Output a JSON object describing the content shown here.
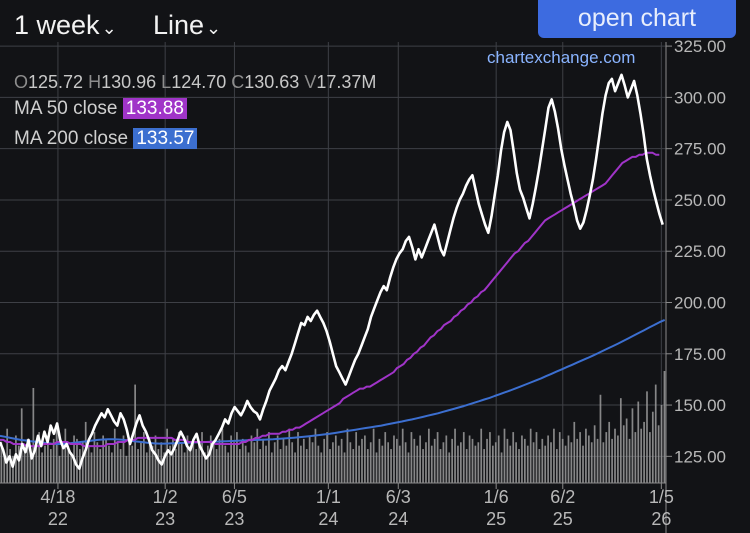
{
  "toolbar": {
    "range_label": "1 week",
    "type_label": "Line",
    "open_chart_label": "open chart",
    "brand": "chartexchange.com"
  },
  "ohlcv": {
    "o_label": "O",
    "o": "125.72",
    "h_label": "H",
    "h": "130.96",
    "l_label": "L",
    "l": "124.70",
    "c_label": "C",
    "c": "130.63",
    "v_label": "V",
    "v": "17.37M"
  },
  "indicators": {
    "ma50": {
      "label": "MA 50 close",
      "value": "133.88",
      "color": "#a034c8"
    },
    "ma200": {
      "label": "MA 200 close",
      "value": "133.57",
      "color": "#3c6fd0"
    }
  },
  "colors": {
    "background": "#121316",
    "grid": "#3e4046",
    "price": "#ffffff",
    "volume": "#9b9b9b",
    "axis_text": "#b8b8b8"
  },
  "chart_data": {
    "type": "line",
    "title": "",
    "xlabel": "",
    "ylabel": "",
    "ylim": [
      112,
      327
    ],
    "y_ticks": [
      "325.00",
      "300.00",
      "275.00",
      "250.00",
      "225.00",
      "200.00",
      "175.00",
      "150.00",
      "125.00"
    ],
    "y_tick_values": [
      325,
      300,
      275,
      250,
      225,
      200,
      175,
      150,
      125
    ],
    "x_ticks": [
      {
        "label": "4/18",
        "year": "22",
        "t": 0.087
      },
      {
        "label": "1/2",
        "year": "23",
        "t": 0.248
      },
      {
        "label": "6/5",
        "year": "23",
        "t": 0.352
      },
      {
        "label": "1/1",
        "year": "24",
        "t": 0.493
      },
      {
        "label": "6/3",
        "year": "24",
        "t": 0.598
      },
      {
        "label": "1/6",
        "year": "25",
        "t": 0.745
      },
      {
        "label": "6/2",
        "year": "25",
        "t": 0.845
      },
      {
        "label": "1/5",
        "year": "26",
        "t": 0.993
      }
    ],
    "series": [
      {
        "key": "price",
        "values": [
          132,
          128,
          122,
          125,
          120,
          126,
          123,
          131,
          127,
          133,
          124,
          128,
          135,
          130,
          137,
          132,
          140,
          136,
          141,
          133,
          129,
          131,
          127,
          125,
          121,
          119,
          124,
          128,
          133,
          136,
          140,
          143,
          146,
          144,
          148,
          145,
          142,
          140,
          146,
          143,
          138,
          131,
          136,
          141,
          145,
          140,
          137,
          133,
          128,
          126,
          123,
          121,
          125,
          128,
          126,
          129,
          133,
          137,
          134,
          130,
          128,
          133,
          136,
          130,
          127,
          124,
          126,
          131,
          133,
          136,
          139,
          143,
          141,
          146,
          149,
          147,
          145,
          148,
          152,
          149,
          147,
          146,
          143,
          148,
          152,
          157,
          160,
          163,
          167,
          169,
          167,
          171,
          175,
          180,
          185,
          190,
          189,
          193,
          191,
          194,
          196,
          193,
          190,
          186,
          181,
          175,
          169,
          166,
          163,
          160,
          164,
          168,
          172,
          175,
          179,
          183,
          187,
          193,
          197,
          201,
          205,
          208,
          206,
          212,
          217,
          221,
          224,
          226,
          230,
          232,
          227,
          221,
          226,
          222,
          226,
          230,
          234,
          238,
          232,
          226,
          223,
          229,
          235,
          241,
          246,
          250,
          253,
          257,
          260,
          262,
          255,
          248,
          243,
          238,
          234,
          242,
          252,
          262,
          274,
          283,
          288,
          284,
          274,
          263,
          255,
          251,
          246,
          241,
          248,
          256,
          265,
          275,
          285,
          295,
          299,
          293,
          285,
          275,
          267,
          260,
          253,
          247,
          240,
          236,
          239,
          245,
          252,
          260,
          270,
          281,
          292,
          301,
          307,
          309,
          303,
          307,
          311,
          306,
          300,
          304,
          308,
          301,
          292,
          282,
          270,
          262,
          255,
          249,
          243,
          238
        ]
      },
      {
        "key": "ma50",
        "values": [
          133,
          133,
          132,
          132,
          131,
          131,
          131,
          131,
          130,
          130,
          130,
          130,
          130,
          131,
          131,
          131,
          131,
          132,
          132,
          132,
          132,
          131,
          131,
          131,
          131,
          130,
          130,
          130,
          130,
          130,
          130,
          130,
          131,
          131,
          131,
          132,
          132,
          132,
          133,
          133,
          133,
          134,
          134,
          134,
          134,
          134,
          134,
          134,
          134,
          134,
          134,
          134,
          133,
          133,
          133,
          133,
          132,
          132,
          132,
          132,
          132,
          132,
          132,
          132,
          131,
          131,
          131,
          131,
          131,
          131,
          131,
          131,
          132,
          132,
          133,
          133,
          134,
          134,
          135,
          135,
          136,
          136,
          136,
          136,
          137,
          137,
          138,
          138,
          139,
          139,
          140,
          141,
          142,
          143,
          144,
          145,
          146,
          147,
          148,
          149,
          150,
          151,
          153,
          154,
          155,
          156,
          157,
          158,
          158,
          159,
          159,
          160,
          161,
          162,
          163,
          164,
          165,
          166,
          168,
          169,
          170,
          172,
          173,
          175,
          176,
          178,
          179,
          181,
          183,
          184,
          186,
          187,
          189,
          190,
          191,
          193,
          194,
          196,
          197,
          199,
          200,
          202,
          203,
          205,
          206,
          208,
          210,
          212,
          214,
          216,
          218,
          220,
          222,
          224,
          225,
          227,
          229,
          230,
          232,
          234,
          236,
          238,
          240,
          241,
          242,
          243,
          244,
          245,
          246,
          247,
          248,
          249,
          250,
          251,
          252,
          253,
          254,
          255,
          256,
          257,
          258,
          260,
          262,
          264,
          266,
          268,
          269,
          270,
          271,
          271,
          272,
          272,
          273,
          273,
          273,
          272,
          272
        ]
      },
      {
        "key": "ma200",
        "values": [
          135,
          134.5,
          134,
          133.5,
          133,
          132.7,
          132.4,
          132.1,
          131.8,
          131.5,
          131.2,
          131,
          131,
          131.2,
          131.5,
          131.8,
          132.1,
          132.4,
          132.7,
          133,
          133.2,
          133.3,
          133.3,
          133.2,
          133,
          132.7,
          132.4,
          132.1,
          131.8,
          131.5,
          131.3,
          131.2,
          131.2,
          131.3,
          131.4,
          131.5,
          131.6,
          131.7,
          131.8,
          131.9,
          132,
          132.1,
          132.2,
          132.3,
          132.4,
          132.5,
          132.6,
          132.7,
          132.8,
          132.9,
          133,
          133.1,
          133.2,
          133.3,
          133.5,
          133.7,
          133.9,
          134.1,
          134.3,
          134.5,
          134.8,
          135.1,
          135.4,
          135.7,
          136,
          136.4,
          136.8,
          137.2,
          137.6,
          138,
          138.4,
          138.8,
          139.2,
          139.6,
          140,
          140.5,
          141,
          141.5,
          142,
          142.5,
          143,
          143.6,
          144.2,
          144.8,
          145.4,
          146,
          146.7,
          147.4,
          148.1,
          148.8,
          149.5,
          150.3,
          151.1,
          151.9,
          152.7,
          153.5,
          154.4,
          155.3,
          156.2,
          157.1,
          158,
          159,
          160,
          161,
          162,
          163,
          164.1,
          165.2,
          166.3,
          167.4,
          168.5,
          169.6,
          170.7,
          171.8,
          172.9,
          174,
          175.2,
          176.4,
          177.6,
          178.8,
          180,
          181.3,
          182.6,
          183.9,
          185.2,
          186.5,
          187.8,
          189.1,
          190.4,
          191.5
        ]
      }
    ],
    "volume": [
      12,
      9,
      16,
      10,
      8,
      14,
      11,
      22,
      9,
      13,
      10,
      28,
      12,
      15,
      9,
      11,
      14,
      10,
      13,
      17,
      8,
      12,
      16,
      11,
      9,
      14,
      13,
      10,
      12,
      18,
      11,
      9,
      15,
      12,
      10,
      14,
      13,
      11,
      9,
      16,
      12,
      10,
      14,
      8,
      13,
      11,
      29,
      10,
      12,
      15,
      9,
      13,
      11,
      14,
      10,
      12,
      9,
      16,
      11,
      13,
      10,
      15,
      12,
      9,
      14,
      11,
      13,
      10,
      12,
      15,
      9,
      11,
      14,
      12,
      10,
      13,
      16,
      11,
      9,
      14,
      12,
      15,
      10,
      13,
      11,
      9,
      14,
      12,
      16,
      10,
      13,
      11,
      15,
      9,
      12,
      14,
      10,
      13,
      11,
      16,
      12,
      9,
      15,
      11,
      13,
      10,
      14,
      12,
      16,
      11,
      9,
      13,
      15,
      10,
      12,
      14,
      11,
      13,
      9,
      16,
      12,
      10,
      15,
      11,
      13,
      14,
      10,
      12,
      16,
      9,
      13,
      11,
      15,
      12,
      10,
      14,
      13,
      11,
      16,
      12,
      9,
      15,
      13,
      11,
      14,
      10,
      12,
      16,
      11,
      13,
      15,
      10,
      12,
      14,
      9,
      13,
      16,
      11,
      12,
      15,
      10,
      14,
      13,
      11,
      12,
      16,
      10,
      13,
      15,
      11,
      12,
      14,
      9,
      16,
      13,
      11,
      15,
      12,
      10,
      14,
      13,
      11,
      16,
      12,
      15,
      10,
      13,
      11,
      14,
      12,
      16,
      10,
      15,
      13,
      11,
      14,
      12,
      18,
      13,
      15,
      11,
      16,
      14,
      12,
      17,
      13,
      26,
      12,
      15,
      18,
      13,
      16,
      14,
      25,
      17,
      19,
      13,
      22,
      15,
      24,
      16,
      18,
      27,
      15,
      21,
      29,
      17,
      23,
      33
    ]
  }
}
